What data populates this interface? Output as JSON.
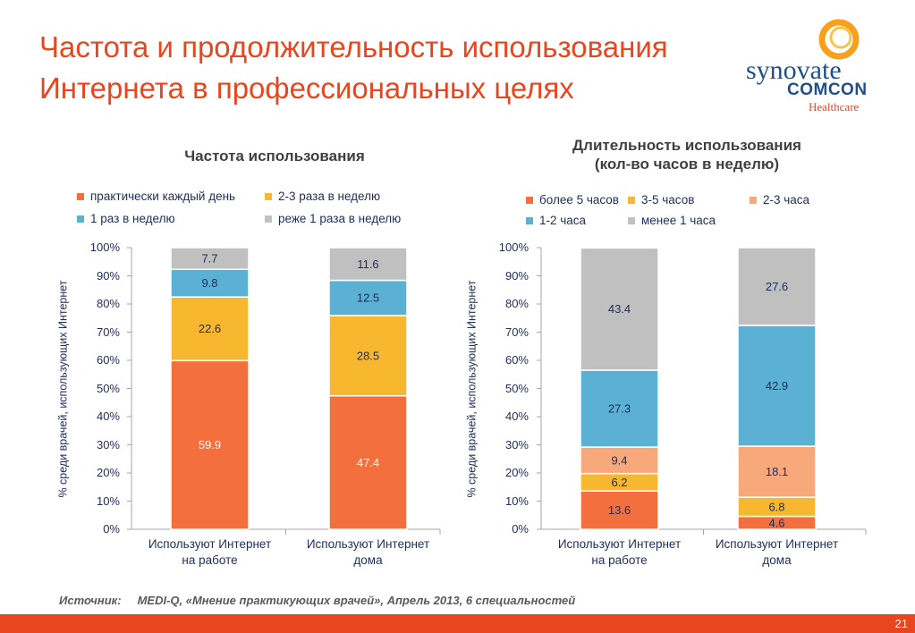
{
  "title": {
    "line1": "Частота и продолжительность использования",
    "line2": "Интернета в профессиональных целях"
  },
  "logo": {
    "name": "synovate",
    "sub": "COMCON",
    "division": "Healthcare"
  },
  "source": {
    "label": "Источник:",
    "text": "MEDI-Q, «Мнение практикующих врачей», Апрель 2013, 6 специальностей"
  },
  "page_number": "21",
  "colors": {
    "orange": "#f36f3e",
    "yellow": "#f7b72e",
    "blue": "#5ab1d3",
    "gray": "#c0c0c0",
    "peach": "#f7a97c",
    "title": "#e8461e"
  },
  "chart_data": [
    {
      "type": "bar",
      "stacked": true,
      "title": "Частота использования",
      "ylabel": "% среди врачей, использующих Интернет",
      "ylim": [
        0,
        100
      ],
      "yticks": [
        "0%",
        "10%",
        "20%",
        "30%",
        "40%",
        "50%",
        "60%",
        "70%",
        "80%",
        "90%",
        "100%"
      ],
      "legend_position": "top",
      "categories": [
        "Используют Интернет\nна работе",
        "Используют Интернет\nдома"
      ],
      "series": [
        {
          "name": "практически каждый день",
          "color": "#f36f3e",
          "values": [
            59.9,
            47.4
          ],
          "label_color": "#ffffff"
        },
        {
          "name": "2-3 раза в неделю",
          "color": "#f7b72e",
          "values": [
            22.6,
            28.5
          ],
          "label_color": "#1e2d5a"
        },
        {
          "name": "1 раз в неделю",
          "color": "#5ab1d3",
          "values": [
            9.8,
            12.5
          ],
          "label_color": "#1e2d5a"
        },
        {
          "name": "реже 1 раза в неделю",
          "color": "#c0c0c0",
          "values": [
            7.7,
            11.6
          ],
          "label_color": "#1e2d5a"
        }
      ]
    },
    {
      "type": "bar",
      "stacked": true,
      "title": "Длительность использования\n(кол-во часов в неделю)",
      "ylabel": "% среди врачей, использующих Интернет",
      "ylim": [
        0,
        100
      ],
      "yticks": [
        "0%",
        "10%",
        "20%",
        "30%",
        "40%",
        "50%",
        "60%",
        "70%",
        "80%",
        "90%",
        "100%"
      ],
      "legend_position": "top",
      "categories": [
        "Используют Интернет\nна работе",
        "Используют Интернет\nдома"
      ],
      "series": [
        {
          "name": "более 5 часов",
          "color": "#f36f3e",
          "values": [
            13.6,
            4.6
          ],
          "label_color": "#1e2d5a"
        },
        {
          "name": "3-5 часов",
          "color": "#f7b72e",
          "values": [
            6.2,
            6.8
          ],
          "label_color": "#1e2d5a"
        },
        {
          "name": "2-3 часа",
          "color": "#f7a97c",
          "values": [
            9.4,
            18.1
          ],
          "label_color": "#1e2d5a"
        },
        {
          "name": "1-2 часа",
          "color": "#5ab1d3",
          "values": [
            27.3,
            42.9
          ],
          "label_color": "#1e2d5a"
        },
        {
          "name": "менее 1 часа",
          "color": "#c0c0c0",
          "values": [
            43.4,
            27.6
          ],
          "label_color": "#1e2d5a"
        }
      ]
    }
  ]
}
